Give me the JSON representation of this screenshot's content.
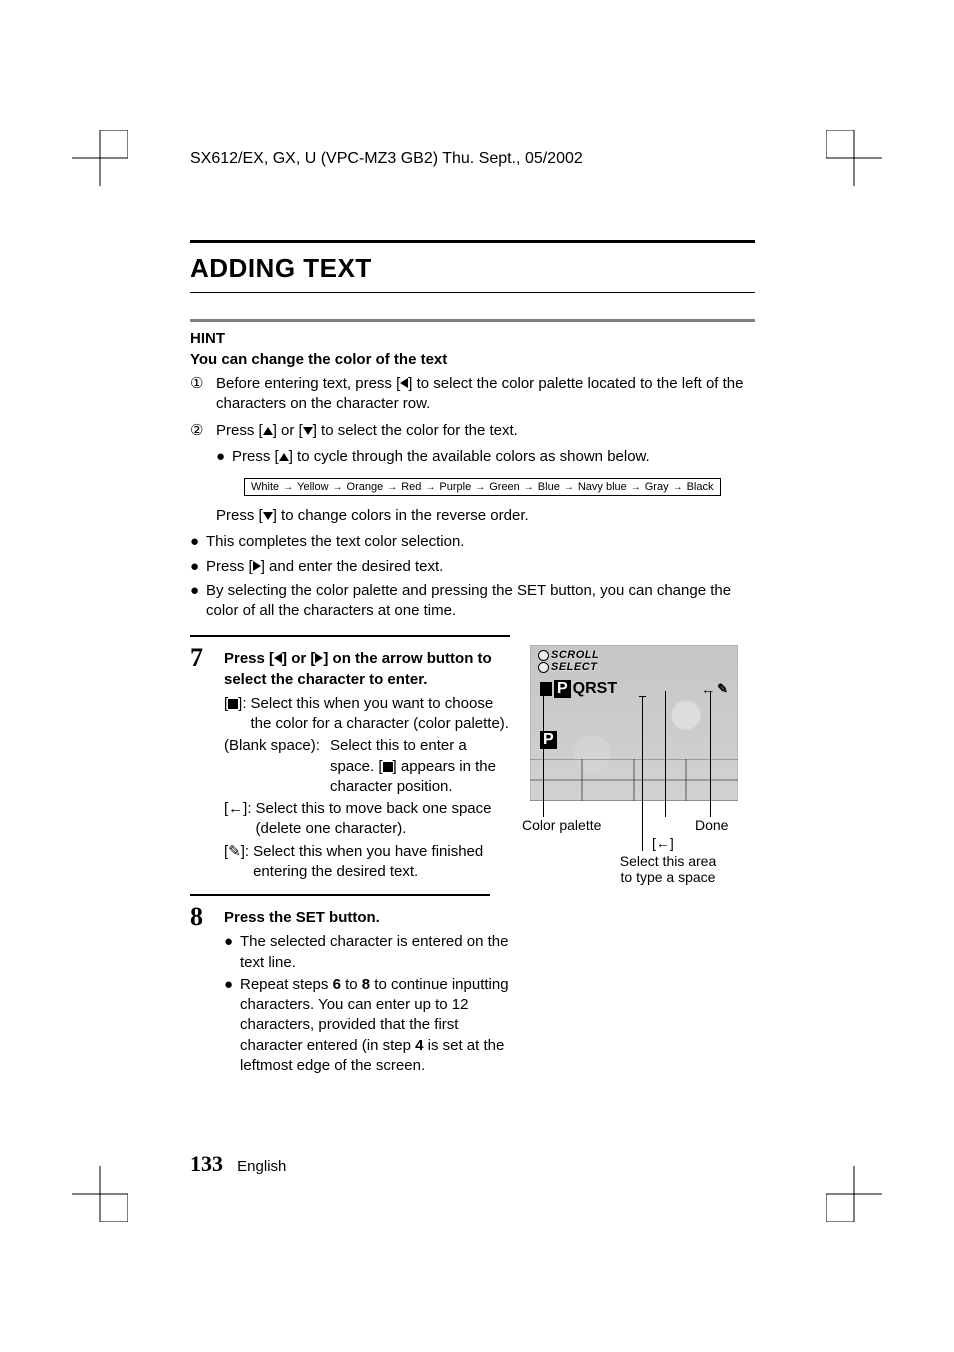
{
  "header": "SX612/EX, GX, U (VPC-MZ3 GB2)    Thu. Sept., 05/2002",
  "page_title": "ADDING TEXT",
  "hint": {
    "label": "HINT",
    "sub": "You can change the color of the text",
    "items": [
      {
        "num": "①",
        "text_before": "Before entering text, press [",
        "text_after": "] to select the color palette located to the left of the characters on the character row."
      },
      {
        "num": "②",
        "text_before": "Press [",
        "text_mid": "] or [",
        "text_after": "] to select the color for the text."
      }
    ],
    "cycle_prefix": "Press [",
    "cycle_suffix": "] to cycle through the available colors as shown below.",
    "color_sequence": [
      "White",
      "Yellow",
      "Orange",
      "Red",
      "Purple",
      "Green",
      "Blue",
      "Navy blue",
      "Gray",
      "Black"
    ],
    "reverse_prefix": "Press [",
    "reverse_suffix": "] to change colors in the reverse order.",
    "complete": "This completes the text color selection.",
    "enter_prefix": "Press [",
    "enter_suffix": "] and enter the desired text.",
    "all_at_once": "By selecting the color palette and pressing the SET button, you can change the color of all the characters at one time."
  },
  "steps": {
    "s7": {
      "num": "7",
      "head_prefix": "Press [",
      "head_mid": "] or [",
      "head_suffix": "] on the arrow button to select the character to enter.",
      "defs": [
        {
          "key_open": "[",
          "key_close": "]:",
          "key_glyph": "square",
          "val": "Select this when you want to choose the color for a character (color palette)."
        },
        {
          "key_text": "(Blank space):",
          "val": "Select this to enter a space. [■] appears in the character position.",
          "wide": true,
          "val_prefix": "Select this to enter a space. [",
          "val_glyph": "square",
          "val_suffix": "] appears in the character position."
        },
        {
          "key_open": "[",
          "key_close": "]:",
          "key_glyph": "back",
          "val": "Select this to move back one space (delete one character)."
        },
        {
          "key_open": "[",
          "key_close": "]:",
          "key_glyph": "done",
          "val": "Select this when you have finished entering the desired text."
        }
      ]
    },
    "s8": {
      "num": "8",
      "head": "Press the SET button.",
      "bullets": [
        "The selected character is entered on the text line.",
        "Repeat steps 6 to 8 to continue inputting characters. You can enter up to 12 characters, provided that the first character entered (in step 4 is set at the leftmost edge of the screen."
      ],
      "b2_prefix": "Repeat steps ",
      "b2_bold1": "6",
      "b2_mid1": " to ",
      "b2_bold2": "8",
      "b2_mid2": " to continue inputting characters. You can enter up to 12 characters, provided that the first character entered (in step ",
      "b2_bold3": "4",
      "b2_suffix": " is set at the leftmost edge of the screen."
    }
  },
  "figure": {
    "osd_scroll": "SCROLL",
    "osd_select": "SELECT",
    "char_row": "PQRST",
    "entered": "P",
    "callout_palette": "Color palette",
    "callout_done": "Done",
    "callout_back": "[←]",
    "callout_space_l1": "Select this area",
    "callout_space_l2": "to type a space"
  },
  "footer": {
    "page": "133",
    "lang": "English"
  },
  "colors": {
    "text": "#000000",
    "hint_rule": "#808080",
    "screen_bg": "#c8c8c8"
  }
}
